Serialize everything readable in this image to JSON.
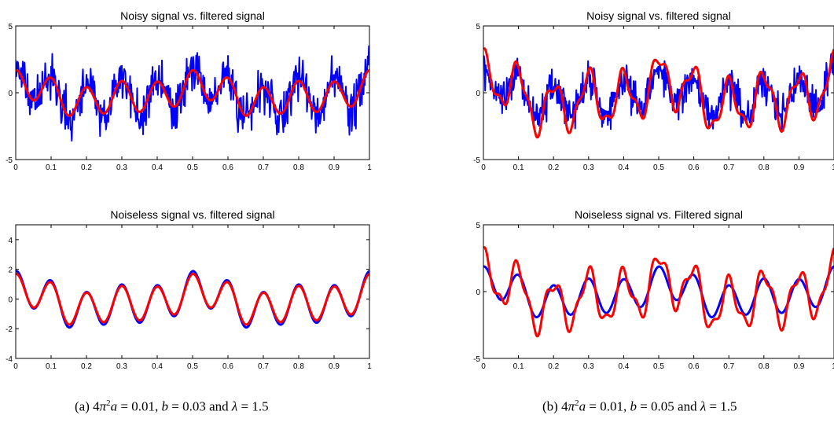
{
  "chart_data": [
    {
      "id": "a-top",
      "type": "line",
      "title": "Noisy signal vs. filtered signal",
      "xlim": [
        0,
        1
      ],
      "ylim": [
        -5,
        5
      ],
      "xticks": [
        "0",
        "0.1",
        "0.2",
        "0.3",
        "0.4",
        "0.5",
        "0.6",
        "0.7",
        "0.8",
        "0.9",
        "1"
      ],
      "yticks": [
        "-5",
        "0",
        "5"
      ],
      "ytick_values": [
        -5,
        0,
        5
      ],
      "series": [
        {
          "role": "noisy",
          "color": "#0000ff",
          "noise": 1.0,
          "gain": 1.0,
          "seed": 11
        },
        {
          "role": "filtered",
          "color": "#ff0000",
          "noise": 0,
          "gain": 0.9
        }
      ]
    },
    {
      "id": "a-bottom",
      "type": "line",
      "title": "Noiseless signal vs. filtered signal",
      "xlim": [
        0,
        1
      ],
      "ylim": [
        -4,
        5
      ],
      "xticks": [
        "0",
        "0.1",
        "0.2",
        "0.3",
        "0.4",
        "0.5",
        "0.6",
        "0.7",
        "0.8",
        "0.9",
        "1"
      ],
      "yticks": [
        "-4",
        "-2",
        "0",
        "2",
        "4"
      ],
      "ytick_values": [
        -4,
        -2,
        0,
        2,
        4
      ],
      "series": [
        {
          "role": "noiseless",
          "color": "#0000ff",
          "noise": 0,
          "gain": 1.0
        },
        {
          "role": "filtered",
          "color": "#ff0000",
          "noise": 0,
          "gain": 0.9
        }
      ]
    },
    {
      "id": "b-top",
      "type": "line",
      "title": "Noisy signal vs. filtered signal",
      "xlim": [
        0,
        1
      ],
      "ylim": [
        -5,
        5
      ],
      "xticks": [
        "0",
        "0.1",
        "0.2",
        "0.3",
        "0.4",
        "0.5",
        "0.6",
        "0.7",
        "0.8",
        "0.9",
        "1"
      ],
      "yticks": [
        "-5",
        "0",
        "5"
      ],
      "ytick_values": [
        -5,
        0,
        5
      ],
      "series": [
        {
          "role": "noisy",
          "color": "#0000ff",
          "noise": 0.85,
          "gain": 1.0,
          "seed": 29
        },
        {
          "role": "filtered",
          "color": "#ff0000",
          "noise": 0,
          "gain": 1.45,
          "wiggle": 0.6
        }
      ]
    },
    {
      "id": "b-bottom",
      "type": "line",
      "title": "Noiseless signal vs. Filtered signal",
      "xlim": [
        0,
        1
      ],
      "ylim": [
        -5,
        5
      ],
      "xticks": [
        "0",
        "0.1",
        "0.2",
        "0.3",
        "0.4",
        "0.5",
        "0.6",
        "0.7",
        "0.8",
        "0.9",
        "1"
      ],
      "yticks": [
        "-5",
        "0",
        "5"
      ],
      "ytick_values": [
        -5,
        0,
        5
      ],
      "series": [
        {
          "role": "noiseless",
          "color": "#0000ff",
          "noise": 0,
          "gain": 1.0
        },
        {
          "role": "filtered",
          "color": "#ff0000",
          "noise": 0,
          "gain": 1.45,
          "wiggle": 0.6
        }
      ]
    }
  ],
  "captions": {
    "a": {
      "label": "(a)",
      "a_value": "= 0.01,",
      "b_value": "= 0.03",
      "lambda_value": "= 1.5"
    },
    "b": {
      "label": "(b)",
      "a_value": "= 0.01,",
      "b_value": "= 0.05",
      "lambda_value": "= 1.5"
    }
  }
}
